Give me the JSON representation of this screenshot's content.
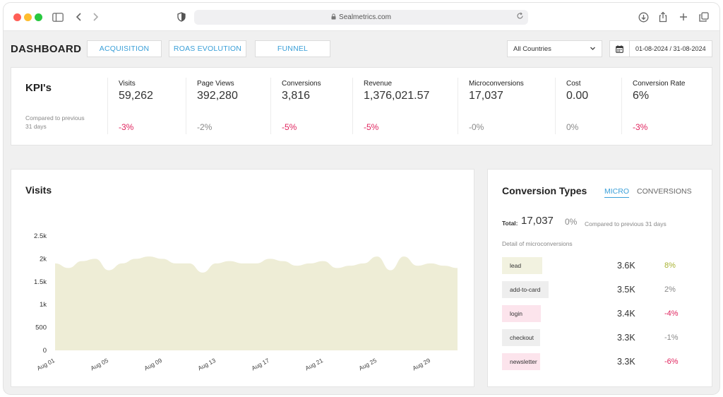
{
  "browser": {
    "url": "Sealmetrics.com"
  },
  "header": {
    "title": "DASHBOARD",
    "tabs": [
      {
        "label": "ACQUISITION"
      },
      {
        "label": "ROAS EVOLUTION"
      },
      {
        "label": "FUNNEL"
      }
    ],
    "country_select": "All Countries",
    "date_range": "01-08-2024 / 31-08-2024"
  },
  "kpis": {
    "title": "KPI's",
    "subtitle": "Compared to previous 31 days",
    "items": [
      {
        "label": "Visits",
        "value": "59,262",
        "change": "-3%",
        "trend": "negative"
      },
      {
        "label": "Page Views",
        "value": "392,280",
        "change": "-2%",
        "trend": "neutral"
      },
      {
        "label": "Conversions",
        "value": "3,816",
        "change": "-5%",
        "trend": "negative"
      },
      {
        "label": "Revenue",
        "value": "1,376,021.57",
        "change": "-5%",
        "trend": "negative"
      },
      {
        "label": "Microconversions",
        "value": "17,037",
        "change": "-0%",
        "trend": "neutral"
      },
      {
        "label": "Cost",
        "value": "0.00",
        "change": "0%",
        "trend": "neutral"
      },
      {
        "label": "Conversion Rate",
        "value": "6%",
        "change": "-3%",
        "trend": "negative"
      }
    ]
  },
  "visits": {
    "title": "Visits"
  },
  "chart_data": {
    "type": "area",
    "title": "Visits",
    "xlabel": "",
    "ylabel": "",
    "ylim": [
      0,
      2500
    ],
    "yticks": [
      "2.5k",
      "2k",
      "1.5k",
      "1k",
      "500",
      "0"
    ],
    "ytick_values": [
      2500,
      2000,
      1500,
      1000,
      500,
      0
    ],
    "xtick_labels": [
      "Aug 01",
      "Aug 05",
      "Aug 09",
      "Aug 13",
      "Aug 17",
      "Aug 21",
      "Aug 25",
      "Aug 29"
    ],
    "x": [
      "Aug 01",
      "Aug 02",
      "Aug 03",
      "Aug 04",
      "Aug 05",
      "Aug 06",
      "Aug 07",
      "Aug 08",
      "Aug 09",
      "Aug 10",
      "Aug 11",
      "Aug 12",
      "Aug 13",
      "Aug 14",
      "Aug 15",
      "Aug 16",
      "Aug 17",
      "Aug 18",
      "Aug 19",
      "Aug 20",
      "Aug 21",
      "Aug 22",
      "Aug 23",
      "Aug 24",
      "Aug 25",
      "Aug 26",
      "Aug 27",
      "Aug 28",
      "Aug 29",
      "Aug 30",
      "Aug 31"
    ],
    "series": [
      {
        "values": [
          1900,
          1800,
          1950,
          2000,
          1750,
          1900,
          2000,
          2050,
          2000,
          1900,
          1900,
          1700,
          1900,
          1950,
          1900,
          1900,
          2000,
          1950,
          1850,
          1900,
          1950,
          1800,
          1850,
          1900,
          2050,
          1750,
          2050,
          1850,
          1900,
          1850,
          1800
        ]
      }
    ],
    "fill_color": "#eeedd6",
    "grid": false
  },
  "conversion_types": {
    "title": "Conversion Types",
    "tab_micro": "MICRO",
    "tab_conversions": "CONVERSIONS",
    "total_label": "Total:",
    "total_value": "17,037",
    "total_change": "0%",
    "total_compare": "Compared to previous 31 days",
    "detail_label": "Detail of microconversions",
    "rows": [
      {
        "name": "lead",
        "value": "3.6K",
        "change": "8%",
        "trend": "positive",
        "tag_color": "#f2f2e0"
      },
      {
        "name": "add-to-card",
        "value": "3.5K",
        "change": "2%",
        "trend": "neutral",
        "tag_color": "#eeeeee"
      },
      {
        "name": "login",
        "value": "3.4K",
        "change": "-4%",
        "trend": "negative",
        "tag_color": "#fce4ec"
      },
      {
        "name": "checkout",
        "value": "3.3K",
        "change": "-1%",
        "trend": "neutral",
        "tag_color": "#eeeeee"
      },
      {
        "name": "newsletter",
        "value": "3.3K",
        "change": "-6%",
        "trend": "negative",
        "tag_color": "#fce4ec"
      }
    ]
  }
}
